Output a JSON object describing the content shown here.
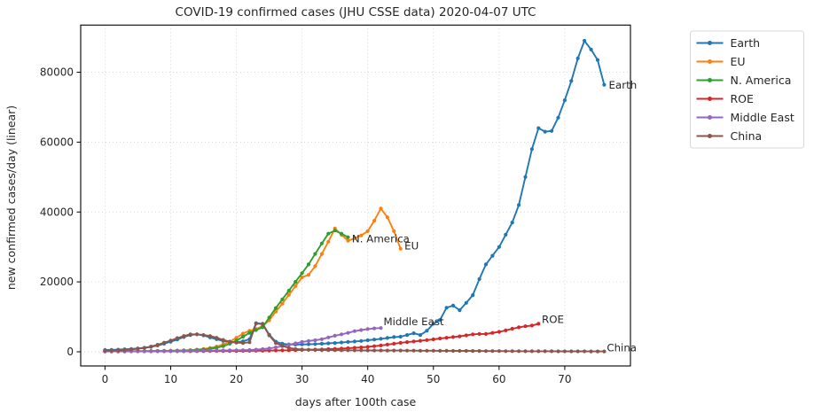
{
  "chart_data": {
    "type": "line",
    "title": "COVID-19 confirmed cases (JHU CSSE data) 2020-04-07 UTC",
    "xlabel": "days after 100th case",
    "ylabel": "new confirmed cases/day (linear)",
    "xlim": [
      -3.7,
      80.0
    ],
    "ylim": [
      -4060,
      93500
    ],
    "xticks": [
      0,
      10,
      20,
      30,
      40,
      50,
      60,
      70
    ],
    "yticks": [
      0,
      20000,
      40000,
      60000,
      80000
    ],
    "grid": true,
    "grid_style": "dotted",
    "grid_color": "#cccccc",
    "frame_color": "#000000",
    "legend": {
      "position": "outside-right",
      "entries": [
        "Earth",
        "EU",
        "N. America",
        "ROE",
        "Middle East",
        "China"
      ]
    },
    "series": [
      {
        "name": "Earth",
        "color": "#1f77b4",
        "day_start": 0,
        "values": [
          500,
          550,
          600,
          700,
          800,
          950,
          1150,
          1400,
          1800,
          2300,
          2900,
          3500,
          4200,
          4800,
          5000,
          4700,
          4100,
          3600,
          3100,
          2800,
          2700,
          3000,
          3600,
          8200,
          8000,
          4900,
          2900,
          2300,
          2100,
          2050,
          2100,
          2150,
          2200,
          2300,
          2400,
          2500,
          2650,
          2800,
          2950,
          3100,
          3300,
          3500,
          3700,
          3950,
          4200,
          4300,
          4800,
          5300,
          4800,
          6000,
          8000,
          9100,
          12600,
          13200,
          11900,
          14000,
          16200,
          20800,
          25000,
          27500,
          30000,
          33500,
          37000,
          42000,
          50000,
          58000,
          64000,
          63000,
          63200,
          67000,
          72000,
          77500,
          84000,
          89000,
          86500,
          83500,
          76400
        ],
        "end_label": {
          "text": "Earth",
          "x": 76.7,
          "y": 76300
        }
      },
      {
        "name": "EU",
        "color": "#ff7f0e",
        "day_start": 0,
        "values": [
          150,
          150,
          160,
          170,
          180,
          190,
          200,
          220,
          240,
          270,
          300,
          340,
          400,
          480,
          600,
          800,
          1100,
          1500,
          2100,
          2900,
          4000,
          5200,
          6000,
          6500,
          7400,
          9000,
          11500,
          13800,
          16300,
          18800,
          21300,
          22000,
          24500,
          28000,
          31500,
          35300,
          33500,
          31800,
          32500,
          33300,
          34500,
          37500,
          41000,
          38500,
          34500,
          29500
        ],
        "end_label": {
          "text": "EU",
          "x": 45.6,
          "y": 30300
        }
      },
      {
        "name": "N. America",
        "color": "#2ca02c",
        "day_start": 0,
        "values": [
          120,
          130,
          140,
          150,
          160,
          170,
          180,
          200,
          220,
          250,
          280,
          320,
          370,
          430,
          520,
          650,
          850,
          1150,
          1600,
          2300,
          3200,
          4300,
          5400,
          6200,
          7000,
          9800,
          12500,
          15000,
          17500,
          20000,
          22500,
          25000,
          28000,
          31000,
          33800,
          34700,
          33800,
          32800
        ],
        "end_label": {
          "text": "N. America",
          "x": 37.6,
          "y": 32300
        }
      },
      {
        "name": "ROE",
        "color": "#d62728",
        "day_start": 0,
        "values": [
          100,
          100,
          110,
          110,
          120,
          120,
          130,
          130,
          140,
          140,
          150,
          150,
          160,
          160,
          170,
          180,
          190,
          200,
          210,
          220,
          230,
          250,
          270,
          290,
          310,
          340,
          370,
          400,
          440,
          480,
          520,
          570,
          620,
          680,
          750,
          830,
          920,
          1020,
          1130,
          1250,
          1400,
          1600,
          1800,
          2050,
          2300,
          2550,
          2750,
          2950,
          3150,
          3350,
          3550,
          3800,
          4000,
          4200,
          4400,
          4700,
          5000,
          5100,
          5100,
          5400,
          5700,
          6100,
          6600,
          7000,
          7300,
          7500,
          8000
        ],
        "end_label": {
          "text": "ROE",
          "x": 66.5,
          "y": 9300
        }
      },
      {
        "name": "Middle East",
        "color": "#9467bd",
        "day_start": 0,
        "values": [
          100,
          110,
          120,
          130,
          140,
          150,
          160,
          170,
          180,
          200,
          220,
          240,
          260,
          280,
          300,
          320,
          340,
          360,
          380,
          400,
          420,
          450,
          500,
          600,
          750,
          950,
          1250,
          1600,
          2000,
          2400,
          2800,
          3100,
          3300,
          3600,
          4100,
          4600,
          5000,
          5400,
          5900,
          6200,
          6500,
          6700,
          6800
        ],
        "end_label": {
          "text": "Middle East",
          "x": 42.4,
          "y": 8600
        }
      },
      {
        "name": "China",
        "color": "#8c564b",
        "day_start": 0,
        "values": [
          300,
          350,
          400,
          500,
          650,
          850,
          1100,
          1500,
          2000,
          2600,
          3200,
          3900,
          4500,
          5000,
          5000,
          4800,
          4500,
          4000,
          3400,
          2900,
          2600,
          2500,
          2700,
          8100,
          7900,
          4700,
          2500,
          1700,
          1100,
          800,
          650,
          550,
          500,
          480,
          460,
          450,
          430,
          420,
          410,
          400,
          390,
          380,
          370,
          360,
          350,
          340,
          330,
          320,
          310,
          300,
          290,
          280,
          270,
          260,
          250,
          240,
          230,
          220,
          210,
          200,
          190,
          180,
          170,
          165,
          160,
          155,
          150,
          145,
          140,
          135,
          130,
          125,
          120,
          115,
          110,
          105,
          100
        ],
        "end_label": {
          "text": "China",
          "x": 76.4,
          "y": 1200
        }
      }
    ]
  }
}
